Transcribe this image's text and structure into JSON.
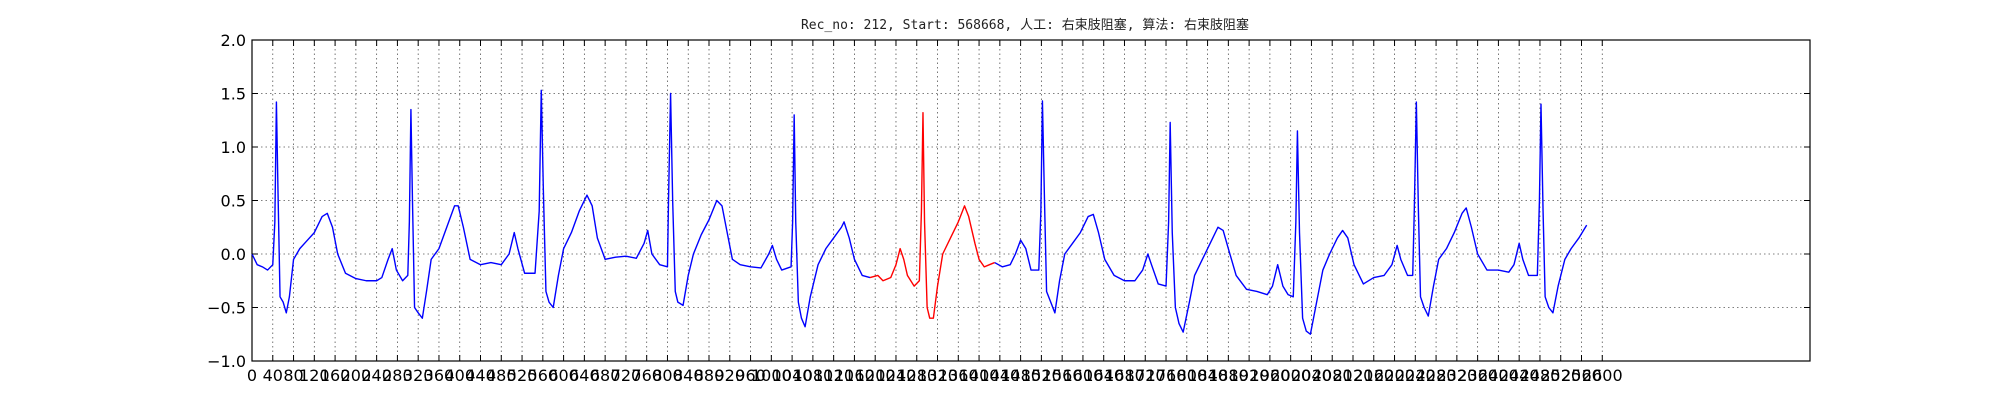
{
  "chart_data": {
    "type": "line",
    "title": "Rec_no: 212, Start: 568668, 人工: 右束肢阻塞, 算法: 右束肢阻塞",
    "xlabel": "",
    "ylabel": "",
    "xlim": [
      0,
      3000
    ],
    "ylim": [
      -1.0,
      2.0
    ],
    "grid": true,
    "y_ticks": [
      "−1.0",
      "−0.5",
      "0.0",
      "0.5",
      "1.0",
      "1.5",
      "2.0"
    ],
    "x_tick_labels": [
      "0",
      "40",
      "80",
      "120",
      "160",
      "200",
      "240",
      "280",
      "320",
      "360",
      "400",
      "440",
      "480",
      "520",
      "560",
      "600",
      "640",
      "680",
      "720",
      "760",
      "800",
      "840",
      "880",
      "920",
      "960",
      "1000",
      "1040",
      "1080",
      "1120",
      "1160",
      "1200",
      "1240",
      "1280",
      "1320",
      "1360",
      "1400",
      "1440",
      "1480",
      "1520",
      "1560",
      "1600",
      "1640",
      "1680",
      "1720",
      "1760",
      "1800",
      "1840",
      "1880",
      "1920",
      "1960",
      "2000",
      "2040",
      "2080",
      "2120",
      "2160",
      "2200",
      "2240",
      "2280",
      "2320",
      "2360",
      "2400",
      "2440",
      "2480",
      "2520",
      "2560",
      "2600"
    ],
    "series": [
      {
        "color": "#0000ff",
        "points": [
          [
            0,
            0.0
          ],
          [
            10,
            -0.1
          ],
          [
            20,
            -0.12
          ],
          [
            30,
            -0.15
          ],
          [
            40,
            -0.1
          ],
          [
            44,
            0.3
          ],
          [
            47,
            1.42
          ],
          [
            50,
            0.6
          ],
          [
            54,
            -0.4
          ],
          [
            60,
            -0.45
          ],
          [
            66,
            -0.55
          ],
          [
            72,
            -0.4
          ],
          [
            80,
            -0.05
          ],
          [
            92,
            0.05
          ],
          [
            105,
            0.12
          ],
          [
            120,
            0.2
          ],
          [
            135,
            0.35
          ],
          [
            145,
            0.38
          ],
          [
            155,
            0.25
          ],
          [
            165,
            0.0
          ],
          [
            180,
            -0.18
          ],
          [
            200,
            -0.23
          ],
          [
            220,
            -0.25
          ],
          [
            240,
            -0.25
          ],
          [
            250,
            -0.22
          ],
          [
            262,
            -0.05
          ],
          [
            270,
            0.05
          ],
          [
            278,
            -0.15
          ],
          [
            290,
            -0.25
          ],
          [
            300,
            -0.2
          ],
          [
            303,
            0.3
          ],
          [
            306,
            1.35
          ],
          [
            309,
            0.5
          ],
          [
            313,
            -0.5
          ],
          [
            320,
            -0.55
          ],
          [
            328,
            -0.6
          ],
          [
            336,
            -0.35
          ],
          [
            345,
            -0.05
          ],
          [
            360,
            0.05
          ],
          [
            375,
            0.25
          ],
          [
            390,
            0.45
          ],
          [
            397,
            0.45
          ],
          [
            407,
            0.25
          ],
          [
            420,
            -0.05
          ],
          [
            440,
            -0.1
          ],
          [
            460,
            -0.08
          ],
          [
            480,
            -0.1
          ],
          [
            495,
            0.0
          ],
          [
            505,
            0.2
          ],
          [
            512,
            0.05
          ],
          [
            525,
            -0.18
          ],
          [
            545,
            -0.18
          ],
          [
            553,
            0.4
          ],
          [
            557,
            1.53
          ],
          [
            561,
            0.6
          ],
          [
            566,
            -0.35
          ],
          [
            572,
            -0.45
          ],
          [
            580,
            -0.5
          ],
          [
            590,
            -0.2
          ],
          [
            600,
            0.05
          ],
          [
            615,
            0.2
          ],
          [
            630,
            0.4
          ],
          [
            645,
            0.55
          ],
          [
            655,
            0.45
          ],
          [
            665,
            0.15
          ],
          [
            680,
            -0.05
          ],
          [
            700,
            -0.03
          ],
          [
            720,
            -0.02
          ],
          [
            740,
            -0.04
          ],
          [
            755,
            0.1
          ],
          [
            762,
            0.22
          ],
          [
            770,
            0.0
          ],
          [
            785,
            -0.1
          ],
          [
            800,
            -0.12
          ],
          [
            802,
            0.5
          ],
          [
            806,
            1.5
          ],
          [
            810,
            0.5
          ],
          [
            815,
            -0.35
          ],
          [
            820,
            -0.45
          ],
          [
            830,
            -0.48
          ],
          [
            840,
            -0.2
          ],
          [
            850,
            0.0
          ],
          [
            865,
            0.18
          ],
          [
            880,
            0.32
          ],
          [
            895,
            0.5
          ],
          [
            905,
            0.45
          ],
          [
            915,
            0.2
          ],
          [
            925,
            -0.05
          ],
          [
            940,
            -0.1
          ],
          [
            960,
            -0.12
          ],
          [
            980,
            -0.13
          ],
          [
            995,
            0.0
          ],
          [
            1002,
            0.08
          ],
          [
            1010,
            -0.05
          ],
          [
            1020,
            -0.15
          ],
          [
            1038,
            -0.12
          ],
          [
            1041,
            0.3
          ],
          [
            1044,
            1.3
          ],
          [
            1047,
            0.3
          ],
          [
            1052,
            -0.45
          ],
          [
            1058,
            -0.6
          ],
          [
            1065,
            -0.68
          ],
          [
            1075,
            -0.4
          ],
          [
            1090,
            -0.1
          ],
          [
            1105,
            0.05
          ],
          [
            1120,
            0.15
          ],
          [
            1135,
            0.25
          ],
          [
            1140,
            0.3
          ],
          [
            1150,
            0.15
          ],
          [
            1160,
            -0.05
          ],
          [
            1175,
            -0.2
          ],
          [
            1190,
            -0.22
          ]
        ]
      },
      {
        "color": "#ff0000",
        "points": [
          [
            1190,
            -0.22
          ],
          [
            1205,
            -0.2
          ],
          [
            1215,
            -0.25
          ],
          [
            1230,
            -0.22
          ],
          [
            1240,
            -0.1
          ],
          [
            1248,
            0.05
          ],
          [
            1255,
            -0.05
          ],
          [
            1262,
            -0.2
          ],
          [
            1275,
            -0.3
          ],
          [
            1285,
            -0.25
          ],
          [
            1289,
            0.4
          ],
          [
            1292,
            1.32
          ],
          [
            1295,
            0.3
          ],
          [
            1300,
            -0.5
          ],
          [
            1305,
            -0.6
          ],
          [
            1312,
            -0.6
          ],
          [
            1320,
            -0.3
          ],
          [
            1330,
            0.0
          ],
          [
            1345,
            0.15
          ],
          [
            1360,
            0.3
          ],
          [
            1372,
            0.45
          ],
          [
            1380,
            0.35
          ],
          [
            1392,
            0.1
          ],
          [
            1400,
            -0.05
          ],
          [
            1410,
            -0.12
          ],
          [
            1420,
            -0.1
          ],
          [
            1430,
            -0.08
          ]
        ]
      },
      {
        "color": "#0000ff",
        "points": [
          [
            1430,
            -0.08
          ],
          [
            1445,
            -0.12
          ],
          [
            1460,
            -0.1
          ],
          [
            1470,
            0.0
          ],
          [
            1480,
            0.13
          ],
          [
            1490,
            0.05
          ],
          [
            1500,
            -0.15
          ],
          [
            1515,
            -0.15
          ],
          [
            1519,
            0.4
          ],
          [
            1522,
            1.43
          ],
          [
            1526,
            0.5
          ],
          [
            1530,
            -0.35
          ],
          [
            1538,
            -0.45
          ],
          [
            1546,
            -0.55
          ],
          [
            1555,
            -0.25
          ],
          [
            1565,
            0.0
          ],
          [
            1580,
            0.1
          ],
          [
            1595,
            0.2
          ],
          [
            1610,
            0.35
          ],
          [
            1620,
            0.37
          ],
          [
            1630,
            0.2
          ],
          [
            1642,
            -0.05
          ],
          [
            1660,
            -0.2
          ],
          [
            1680,
            -0.25
          ],
          [
            1700,
            -0.25
          ],
          [
            1715,
            -0.15
          ],
          [
            1725,
            0.0
          ],
          [
            1732,
            -0.1
          ],
          [
            1745,
            -0.28
          ],
          [
            1760,
            -0.3
          ],
          [
            1765,
            0.3
          ],
          [
            1768,
            1.23
          ],
          [
            1772,
            0.2
          ],
          [
            1778,
            -0.5
          ],
          [
            1785,
            -0.65
          ],
          [
            1793,
            -0.73
          ],
          [
            1805,
            -0.45
          ],
          [
            1815,
            -0.2
          ],
          [
            1830,
            -0.05
          ],
          [
            1845,
            0.1
          ],
          [
            1860,
            0.25
          ],
          [
            1870,
            0.22
          ],
          [
            1880,
            0.05
          ],
          [
            1895,
            -0.2
          ],
          [
            1915,
            -0.33
          ],
          [
            1935,
            -0.35
          ],
          [
            1955,
            -0.38
          ],
          [
            1965,
            -0.3
          ],
          [
            1975,
            -0.1
          ],
          [
            1985,
            -0.3
          ],
          [
            1995,
            -0.38
          ],
          [
            2005,
            -0.4
          ],
          [
            2010,
            0.3
          ],
          [
            2013,
            1.15
          ],
          [
            2017,
            0.2
          ],
          [
            2023,
            -0.6
          ],
          [
            2030,
            -0.72
          ],
          [
            2038,
            -0.75
          ],
          [
            2050,
            -0.45
          ],
          [
            2062,
            -0.15
          ],
          [
            2075,
            0.0
          ],
          [
            2090,
            0.15
          ],
          [
            2100,
            0.22
          ],
          [
            2110,
            0.15
          ],
          [
            2122,
            -0.1
          ],
          [
            2140,
            -0.28
          ],
          [
            2160,
            -0.22
          ],
          [
            2180,
            -0.2
          ],
          [
            2195,
            -0.1
          ],
          [
            2205,
            0.08
          ],
          [
            2212,
            -0.05
          ],
          [
            2225,
            -0.2
          ],
          [
            2235,
            -0.2
          ],
          [
            2238,
            0.4
          ],
          [
            2242,
            1.42
          ],
          [
            2246,
            0.4
          ],
          [
            2250,
            -0.4
          ],
          [
            2257,
            -0.5
          ],
          [
            2265,
            -0.58
          ],
          [
            2275,
            -0.3
          ],
          [
            2285,
            -0.05
          ],
          [
            2300,
            0.05
          ],
          [
            2315,
            0.2
          ],
          [
            2330,
            0.38
          ],
          [
            2338,
            0.43
          ],
          [
            2348,
            0.25
          ],
          [
            2360,
            0.0
          ],
          [
            2378,
            -0.15
          ],
          [
            2400,
            -0.15
          ],
          [
            2420,
            -0.17
          ],
          [
            2430,
            -0.1
          ],
          [
            2440,
            0.1
          ],
          [
            2447,
            -0.05
          ],
          [
            2458,
            -0.2
          ],
          [
            2475,
            -0.2
          ],
          [
            2479,
            0.5
          ],
          [
            2482,
            1.4
          ],
          [
            2486,
            0.4
          ],
          [
            2490,
            -0.4
          ],
          [
            2497,
            -0.5
          ],
          [
            2505,
            -0.55
          ],
          [
            2515,
            -0.3
          ],
          [
            2528,
            -0.05
          ],
          [
            2540,
            0.05
          ],
          [
            2555,
            0.15
          ],
          [
            2570,
            0.27
          ]
        ]
      }
    ]
  }
}
